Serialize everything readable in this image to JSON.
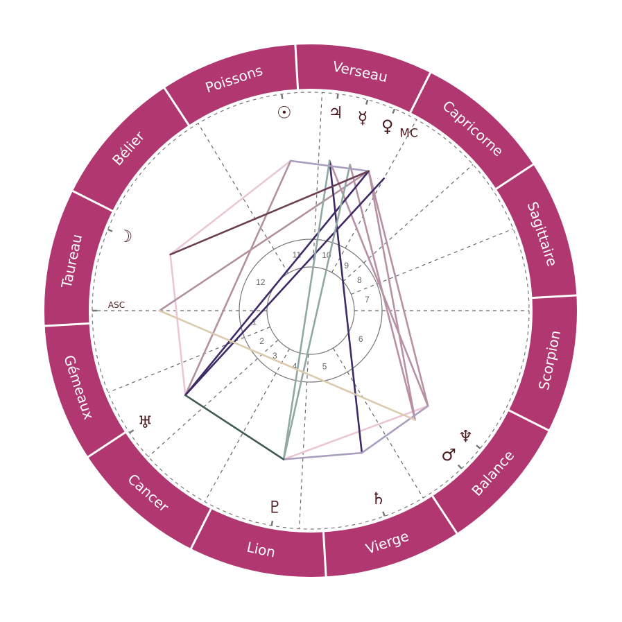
{
  "colors": {
    "ring": "#b0376f",
    "ring_divider": "#ffffff",
    "cusp_line": "#666666",
    "glyph": "#4a1a1e"
  },
  "signs": [
    {
      "name": "Bélier",
      "start": 0
    },
    {
      "name": "Taureau",
      "start": 30
    },
    {
      "name": "Gémeaux",
      "start": 60
    },
    {
      "name": "Cancer",
      "start": 90
    },
    {
      "name": "Lion",
      "start": 120
    },
    {
      "name": "Vierge",
      "start": 150
    },
    {
      "name": "Balance",
      "start": 180
    },
    {
      "name": "Scorpion",
      "start": 210
    },
    {
      "name": "Sagittaire",
      "start": 240
    },
    {
      "name": "Capricorne",
      "start": 270
    },
    {
      "name": "Verseau",
      "start": 300
    },
    {
      "name": "Poissons",
      "start": 330
    }
  ],
  "houses": [
    {
      "number": "1",
      "cusp": 56.7
    },
    {
      "number": "2",
      "cusp": 78.7
    },
    {
      "number": "3",
      "cusp": 98.7
    },
    {
      "number": "4",
      "cusp": 117.7
    },
    {
      "number": "5",
      "cusp": 143.7
    },
    {
      "number": "6",
      "cusp": 177.7
    },
    {
      "number": "7",
      "cusp": 236.7
    },
    {
      "number": "8",
      "cusp": 258.7
    },
    {
      "number": "9",
      "cusp": 278.7
    },
    {
      "number": "10",
      "cusp": 297.7
    },
    {
      "number": "11",
      "cusp": 323.7
    },
    {
      "number": "12",
      "cusp": 357.7
    }
  ],
  "angles": [
    {
      "id": "asc",
      "label": "ASC",
      "longitude": 56.7
    },
    {
      "id": "mc",
      "label": "MC",
      "longitude": 297.7
    }
  ],
  "planets": [
    {
      "id": "sun",
      "glyph": "☉",
      "icon": "sun-icon",
      "longitude": 334.3
    },
    {
      "id": "jupiter",
      "glyph": "♃",
      "icon": "jupiter-icon",
      "longitude": 319.5
    },
    {
      "id": "mercury",
      "glyph": "☿",
      "icon": "mercury-icon",
      "longitude": 311.6
    },
    {
      "id": "venus",
      "glyph": "♀",
      "icon": "venus-icon",
      "longitude": 304.1
    },
    {
      "id": "moon",
      "glyph": "☽",
      "icon": "moon-icon",
      "longitude": 34.9
    },
    {
      "id": "uranus",
      "glyph": "♅",
      "icon": "uranus-icon",
      "longitude": 90.7
    },
    {
      "id": "pluto",
      "glyph": "♇",
      "icon": "pluto-icon",
      "longitude": 136.4
    },
    {
      "id": "saturn",
      "glyph": "♄",
      "icon": "saturn-icon",
      "longitude": 166.5
    },
    {
      "id": "mars",
      "glyph": "♂",
      "icon": "mars-icon",
      "longitude": 190.4
    },
    {
      "id": "neptune",
      "glyph": "♆",
      "icon": "neptune-icon",
      "longitude": 197.6
    }
  ],
  "aspects": [
    {
      "from": "sun",
      "to": "moon",
      "color": "#eac6d6"
    },
    {
      "from": "moon",
      "to": "uranus",
      "color": "#eac6d6"
    },
    {
      "from": "pluto",
      "to": "neptune",
      "color": "#eac6d6"
    },
    {
      "from": "sun",
      "to": "uranus",
      "color": "#b2909f"
    },
    {
      "from": "asc",
      "to": "venus",
      "color": "#b2909f"
    },
    {
      "from": "jupiter",
      "to": "neptune",
      "color": "#b890a4"
    },
    {
      "from": "venus",
      "to": "neptune",
      "color": "#b890a4"
    },
    {
      "from": "venus",
      "to": "mars",
      "color": "#b890a4"
    },
    {
      "from": "mercury",
      "to": "mars",
      "color": "#b890a4"
    },
    {
      "from": "uranus",
      "to": "venus",
      "color": "#3e2a66"
    },
    {
      "from": "uranus",
      "to": "mc",
      "color": "#3e2a66"
    },
    {
      "from": "jupiter",
      "to": "saturn",
      "color": "#3e2a66"
    },
    {
      "from": "pluto",
      "to": "jupiter",
      "color": "#8fa9a2"
    },
    {
      "from": "pluto",
      "to": "mercury",
      "color": "#8fa9a2"
    },
    {
      "from": "sun",
      "to": "venus",
      "color": "#aa9ebe"
    },
    {
      "from": "saturn",
      "to": "neptune",
      "color": "#aa9ebe"
    },
    {
      "from": "pluto",
      "to": "saturn",
      "color": "#aa9ebe"
    },
    {
      "from": "moon",
      "to": "venus",
      "color": "#6a3f52"
    },
    {
      "from": "asc",
      "to": "mars",
      "color": "#dccaae"
    },
    {
      "from": "uranus",
      "to": "pluto",
      "color": "#3f5a50"
    }
  ]
}
